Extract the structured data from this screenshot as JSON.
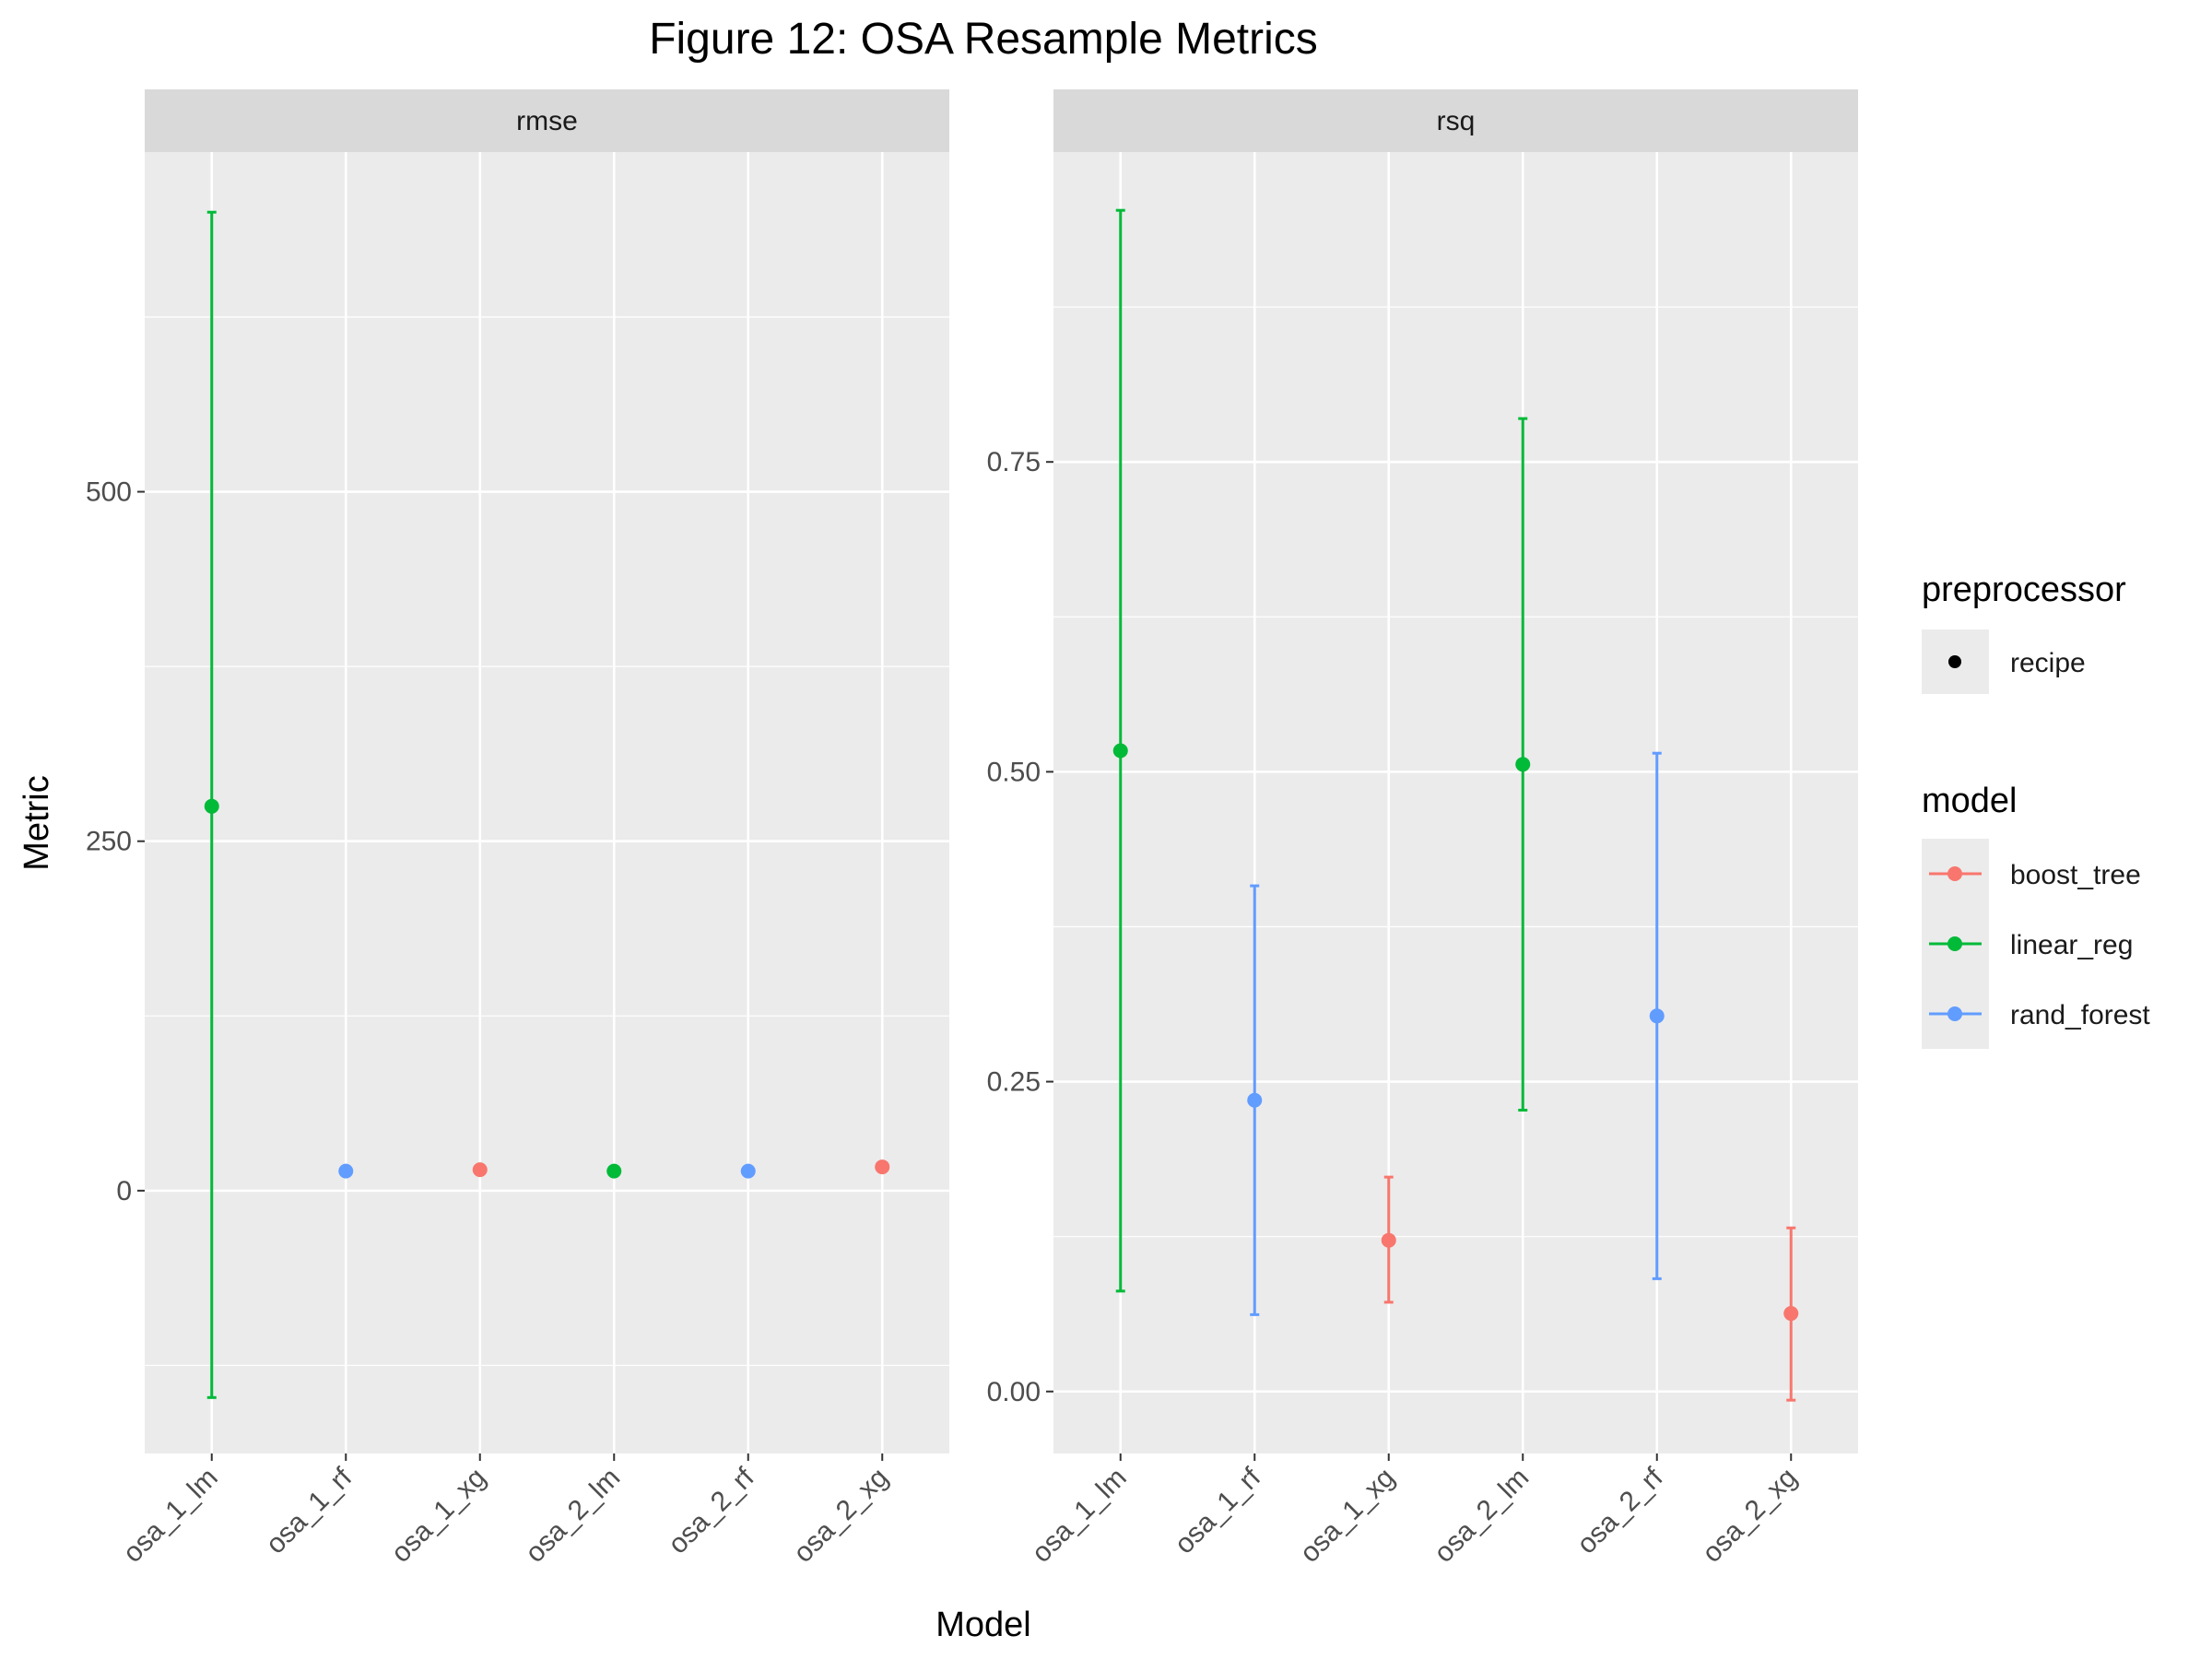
{
  "title": "Figure 12: OSA Resample Metrics",
  "xlabel": "Model",
  "ylabel": "Metric",
  "colors": {
    "boost_tree": "#F8766D",
    "linear_reg": "#00BA38",
    "rand_forest": "#619CFF",
    "panel_bg": "#EBEBEB",
    "strip_bg": "#D9D9D9",
    "grid": "#FFFFFF"
  },
  "legend": {
    "preprocessor_title": "preprocessor",
    "preprocessor_items": [
      "recipe"
    ],
    "model_title": "model",
    "model_items": [
      "boost_tree",
      "linear_reg",
      "rand_forest"
    ]
  },
  "chart_data": [
    {
      "type": "scatter",
      "panel": "rmse",
      "categories": [
        "osa_1_lm",
        "osa_1_rf",
        "osa_1_xg",
        "osa_2_lm",
        "osa_2_rf",
        "osa_2_xg"
      ],
      "model": [
        "linear_reg",
        "rand_forest",
        "boost_tree",
        "linear_reg",
        "rand_forest",
        "boost_tree"
      ],
      "values": [
        275,
        14,
        15,
        14,
        14,
        17
      ],
      "lower": [
        -148,
        12,
        14,
        13,
        12,
        16
      ],
      "upper": [
        700,
        16,
        16,
        15,
        16,
        18
      ],
      "yticks": [
        0,
        250,
        500
      ],
      "ylim": [
        -188,
        743
      ],
      "grid": true
    },
    {
      "type": "scatter",
      "panel": "rsq",
      "categories": [
        "osa_1_lm",
        "osa_1_rf",
        "osa_1_xg",
        "osa_2_lm",
        "osa_2_rf",
        "osa_2_xg"
      ],
      "model": [
        "linear_reg",
        "rand_forest",
        "boost_tree",
        "linear_reg",
        "rand_forest",
        "boost_tree"
      ],
      "values": [
        0.517,
        0.235,
        0.122,
        0.506,
        0.303,
        0.063
      ],
      "lower": [
        0.081,
        0.062,
        0.072,
        0.227,
        0.091,
        -0.007
      ],
      "upper": [
        0.953,
        0.408,
        0.173,
        0.785,
        0.515,
        0.132
      ],
      "yticks": [
        0.0,
        0.25,
        0.5,
        0.75
      ],
      "yticklabels": [
        "0.00",
        "0.25",
        "0.50",
        "0.75"
      ],
      "ylim": [
        -0.05,
        1.0
      ],
      "grid": true
    }
  ]
}
